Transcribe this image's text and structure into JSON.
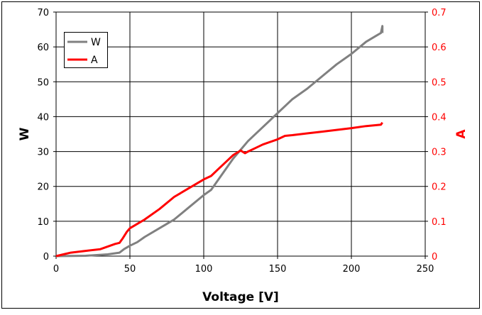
{
  "chart_data": {
    "type": "line",
    "title": "",
    "xlabel": "Voltage [V]",
    "ylabel": "W",
    "y2label": "A",
    "xlim": [
      0,
      250
    ],
    "ylim": [
      0,
      70
    ],
    "y2lim": [
      0,
      0.7
    ],
    "xticks": [
      "0",
      "50",
      "100",
      "150",
      "200",
      "250"
    ],
    "yticks": [
      "0",
      "10",
      "20",
      "30",
      "40",
      "50",
      "60",
      "70"
    ],
    "y2ticks": [
      "0",
      "0.1",
      "0.2",
      "0.3",
      "0.4",
      "0.5",
      "0.6",
      "0.7"
    ],
    "grid": true,
    "legend_position": "top-left",
    "series": [
      {
        "name": "W",
        "axis": "left",
        "color": "#808080",
        "x": [
          0,
          20,
          35,
          43,
          46,
          50,
          55,
          60,
          70,
          80,
          90,
          100,
          105,
          110,
          115,
          120,
          125,
          130,
          140,
          150,
          155,
          160,
          170,
          180,
          190,
          200,
          210,
          218,
          220,
          221,
          221
        ],
        "y": [
          0,
          0.1,
          0.5,
          1,
          2,
          3,
          4,
          5.5,
          8,
          10.5,
          14,
          17.5,
          19,
          22,
          25,
          28,
          30.5,
          33,
          37,
          41,
          43,
          45,
          48,
          51.5,
          55,
          58,
          61.5,
          63.5,
          64,
          66,
          64
        ]
      },
      {
        "name": "A",
        "axis": "right",
        "color": "#ff0000",
        "x": [
          0,
          5,
          10,
          20,
          30,
          40,
          43,
          45,
          48,
          50,
          60,
          70,
          80,
          90,
          100,
          105,
          110,
          115,
          120,
          125,
          128,
          130,
          135,
          140,
          150,
          155,
          160,
          170,
          180,
          190,
          200,
          210,
          220,
          221
        ],
        "y": [
          0,
          0.005,
          0.01,
          0.015,
          0.02,
          0.035,
          0.038,
          0.05,
          0.07,
          0.08,
          0.105,
          0.135,
          0.17,
          0.195,
          0.22,
          0.23,
          0.25,
          0.27,
          0.29,
          0.303,
          0.295,
          0.3,
          0.31,
          0.32,
          0.335,
          0.345,
          0.347,
          0.352,
          0.357,
          0.362,
          0.367,
          0.373,
          0.377,
          0.383
        ]
      }
    ]
  }
}
